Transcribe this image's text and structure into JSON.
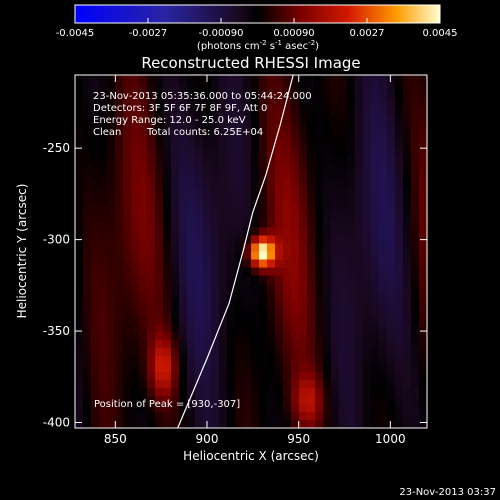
{
  "colorbar": {
    "min": -0.0045,
    "max": 0.0045,
    "tick_labels": [
      "-0.0045",
      "-0.0027",
      "-0.00090",
      "0.00090",
      "0.0027",
      "0.0045"
    ],
    "label_main": "(photons cm",
    "label_sup1": "-2",
    "label_mid1": " s",
    "label_sup2": "-1",
    "label_mid2": " asec",
    "label_sup3": "-2",
    "label_end": ")"
  },
  "chart_data": {
    "type": "heatmap",
    "title": "Reconstructed RHESSI Image",
    "xlabel": "Heliocentric X (arcsec)",
    "ylabel": "Heliocentric Y (arcsec)",
    "xlim": [
      828,
      1020
    ],
    "ylim": [
      -403,
      -210
    ],
    "xticks": [
      850,
      900,
      950,
      1000
    ],
    "xtick_labels": [
      "850",
      "900",
      "950",
      "1000"
    ],
    "yticks": [
      -250,
      -300,
      -350,
      -400
    ],
    "ytick_labels": [
      "-250",
      "-300",
      "-350",
      "-400"
    ],
    "peak_position": [
      930,
      -307
    ],
    "annotations": {
      "time_range": "23-Nov-2013 05:35:36.000 to 05:44:24.000",
      "detectors": "Detectors: 3F 5F 6F 7F 8F 9F, Att 0",
      "energy_range": "Energy Range: 12.0 - 25.0 keV",
      "clean": "Clean",
      "total_counts": "Total counts: 6.25E+04",
      "peak_label": "Position of Peak = [930,-307]"
    },
    "limb_curve": [
      [
        884,
        -403
      ],
      [
        900,
        -365
      ],
      [
        912,
        -335
      ],
      [
        920,
        -305
      ],
      [
        925,
        -285
      ],
      [
        932,
        -265
      ],
      [
        940,
        -237
      ],
      [
        947,
        -210
      ]
    ],
    "sources": [
      {
        "x": 930,
        "y": -307,
        "amp": 0.0045,
        "sx": 5,
        "sy": 6
      },
      {
        "x": 876,
        "y": -370,
        "amp": 0.0018,
        "sx": 5,
        "sy": 12
      },
      {
        "x": 955,
        "y": -388,
        "amp": 0.0013,
        "sx": 6,
        "sy": 10
      }
    ]
  },
  "footer_timestamp": "23-Nov-2013 03:37"
}
